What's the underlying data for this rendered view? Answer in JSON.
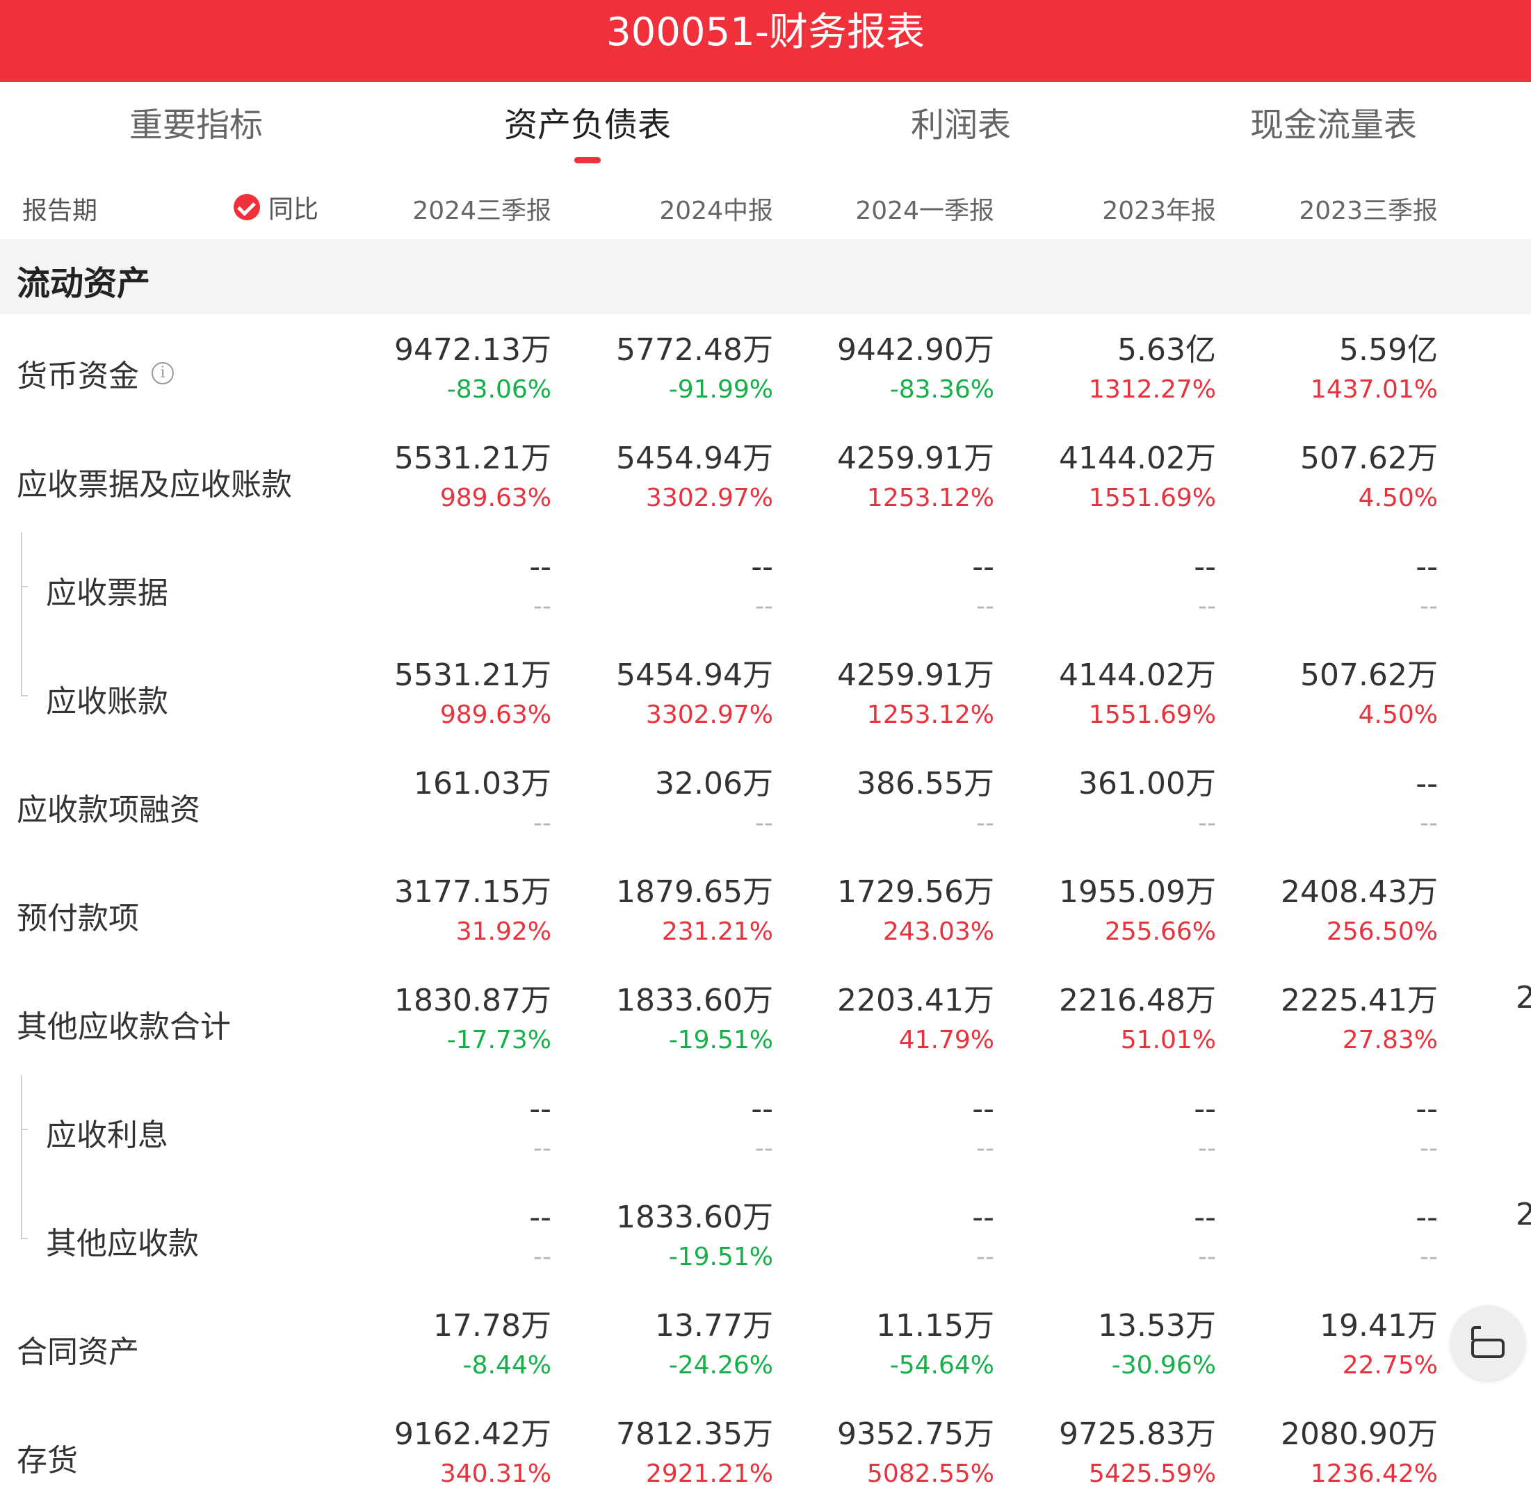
{
  "header": {
    "title": "300051-财务报表"
  },
  "tabs": [
    {
      "label": "重要指标"
    },
    {
      "label": "资产负债表"
    },
    {
      "label": "利润表"
    },
    {
      "label": "现金流量表"
    }
  ],
  "column_header": {
    "period_label": "报告期",
    "yoy_label": "同比",
    "periods": [
      "2024三季报",
      "2024中报",
      "2024一季报",
      "2023年报",
      "2023三季报"
    ]
  },
  "section": {
    "title": "流动资产"
  },
  "rows": [
    {
      "name": "货币资金",
      "values": [
        "9472.13万",
        "5772.48万",
        "9442.90万",
        "5.63亿",
        "5.59亿"
      ],
      "yoy": [
        "-83.06%",
        "-91.99%",
        "-83.36%",
        "1312.27%",
        "1437.01%"
      ]
    },
    {
      "name": "应收票据及应收账款",
      "values": [
        "5531.21万",
        "5454.94万",
        "4259.91万",
        "4144.02万",
        "507.62万"
      ],
      "yoy": [
        "989.63%",
        "3302.97%",
        "1253.12%",
        "1551.69%",
        "4.50%"
      ]
    },
    {
      "name": "应收票据",
      "values": [
        "--",
        "--",
        "--",
        "--",
        "--"
      ],
      "yoy": [
        "--",
        "--",
        "--",
        "--",
        "--"
      ]
    },
    {
      "name": "应收账款",
      "values": [
        "5531.21万",
        "5454.94万",
        "4259.91万",
        "4144.02万",
        "507.62万"
      ],
      "yoy": [
        "989.63%",
        "3302.97%",
        "1253.12%",
        "1551.69%",
        "4.50%"
      ]
    },
    {
      "name": "应收款项融资",
      "values": [
        "161.03万",
        "32.06万",
        "386.55万",
        "361.00万",
        "--"
      ],
      "yoy": [
        "--",
        "--",
        "--",
        "--",
        "--"
      ]
    },
    {
      "name": "预付款项",
      "values": [
        "3177.15万",
        "1879.65万",
        "1729.56万",
        "1955.09万",
        "2408.43万"
      ],
      "yoy": [
        "31.92%",
        "231.21%",
        "243.03%",
        "255.66%",
        "256.50%"
      ]
    },
    {
      "name": "其他应收款合计",
      "values": [
        "1830.87万",
        "1833.60万",
        "2203.41万",
        "2216.48万",
        "2225.41万"
      ],
      "yoy": [
        "-17.73%",
        "-19.51%",
        "41.79%",
        "51.01%",
        "27.83%"
      ]
    },
    {
      "name": "应收利息",
      "values": [
        "--",
        "--",
        "--",
        "--",
        "--"
      ],
      "yoy": [
        "--",
        "--",
        "--",
        "--",
        "--"
      ]
    },
    {
      "name": "其他应收款",
      "values": [
        "--",
        "1833.60万",
        "--",
        "--",
        "--"
      ],
      "yoy": [
        "--",
        "-19.51%",
        "--",
        "--",
        "--"
      ]
    },
    {
      "name": "合同资产",
      "values": [
        "17.78万",
        "13.77万",
        "11.15万",
        "13.53万",
        "19.41万"
      ],
      "yoy": [
        "-8.44%",
        "-24.26%",
        "-54.64%",
        "-30.96%",
        "22.75%"
      ]
    },
    {
      "name": "存货",
      "values": [
        "9162.42万",
        "7812.35万",
        "9352.75万",
        "9725.83万",
        "2080.90万"
      ],
      "yoy": [
        "340.31%",
        "2921.21%",
        "5082.55%",
        "5425.59%",
        "1236.42%"
      ]
    }
  ],
  "edge_partial": "2",
  "colors": {
    "brand": "#f0303a",
    "up": "#e8323c",
    "down": "#16b04a",
    "neutral": "#b5b5b5"
  }
}
